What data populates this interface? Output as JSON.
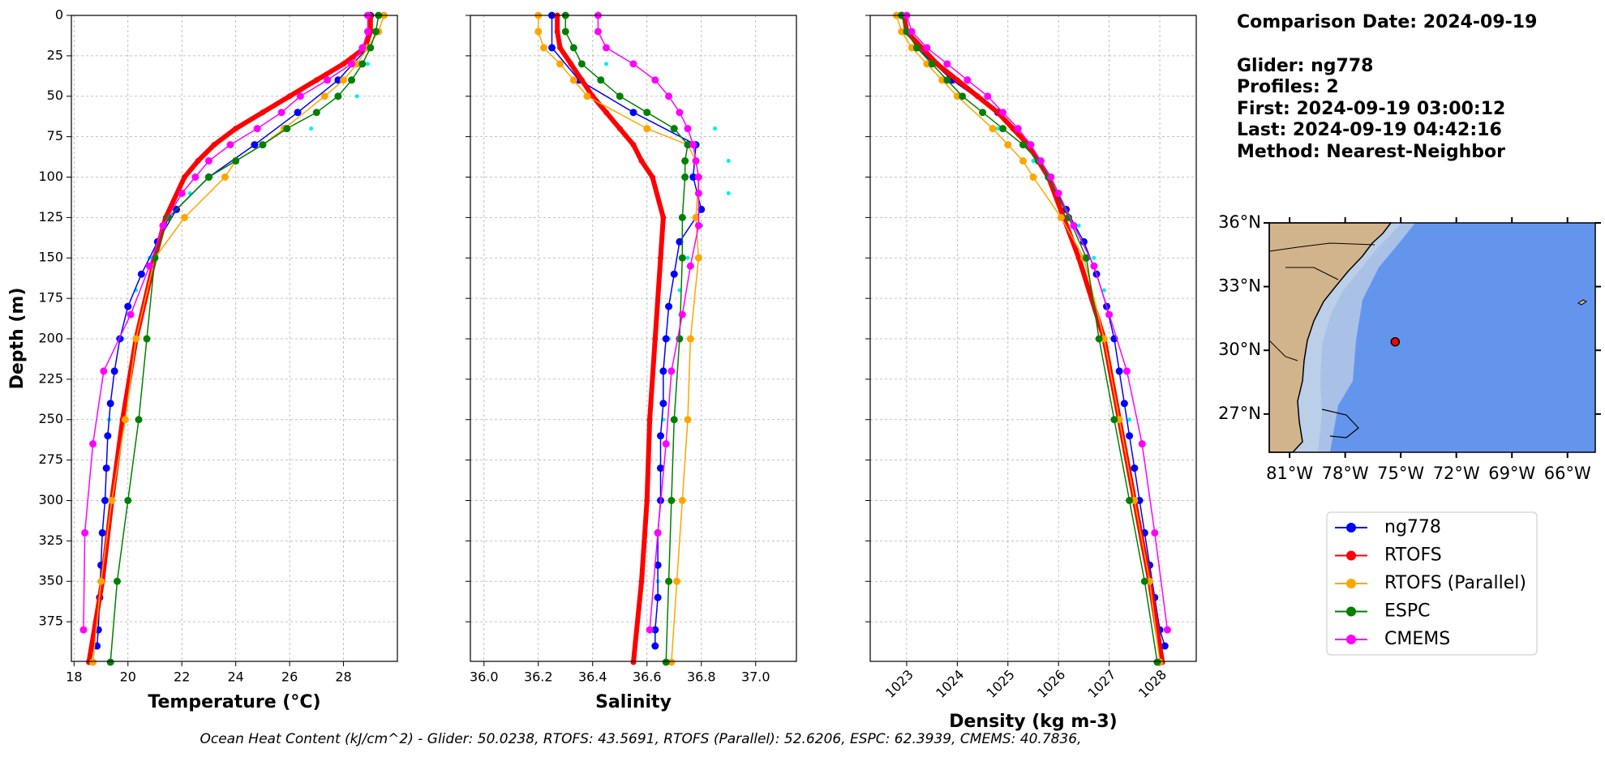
{
  "chart_data": [
    {
      "type": "line",
      "xlabel": "Temperature (°C)",
      "ylabel": "Depth (m)",
      "xlim": [
        17.9,
        30
      ],
      "xticks": [
        18,
        20,
        22,
        24,
        26,
        28
      ],
      "ylim": [
        399.5,
        0
      ],
      "yticks": [
        0,
        25,
        50,
        75,
        100,
        125,
        150,
        175,
        200,
        225,
        250,
        275,
        300,
        325,
        350,
        375
      ],
      "show_ytick_labels": true,
      "xtick_rotation": 0,
      "grid": true,
      "series": [
        {
          "color": "#00eeee",
          "linewidth": 0,
          "y": [
            30,
            50,
            70,
            90,
            110,
            130,
            150,
            170,
            200,
            250,
            300,
            350,
            390
          ],
          "values": [
            28.9,
            28.5,
            26.8,
            24.0,
            22.3,
            21.3,
            20.8,
            20.3,
            19.8,
            19.3,
            19.2,
            19.0,
            18.9
          ]
        },
        {
          "name": "ng778",
          "color": "#0000ff",
          "linewidth": 1.5,
          "y": [
            0,
            20,
            40,
            60,
            80,
            100,
            120,
            140,
            160,
            180,
            200,
            220,
            240,
            260,
            280,
            300,
            320,
            340,
            360,
            380,
            390
          ],
          "values": [
            29.0,
            28.9,
            27.8,
            26.3,
            24.7,
            23.0,
            21.8,
            21.1,
            20.5,
            20.0,
            19.7,
            19.5,
            19.35,
            19.25,
            19.2,
            19.15,
            19.05,
            19.0,
            18.95,
            18.9,
            18.85
          ]
        },
        {
          "name": "RTOFS",
          "color": "#ff0000",
          "linewidth": 6,
          "y": [
            0,
            10,
            20,
            30,
            40,
            50,
            60,
            70,
            80,
            90,
            100,
            125,
            150,
            200,
            250,
            300,
            350,
            400
          ],
          "values": [
            29.0,
            29.0,
            28.8,
            28.0,
            27.0,
            26.0,
            25.0,
            24.0,
            23.2,
            22.6,
            22.1,
            21.4,
            21.0,
            20.3,
            19.8,
            19.4,
            19.05,
            18.55
          ]
        },
        {
          "name": "RTOFS (Parallel)",
          "color": "#ffa500",
          "linewidth": 1.5,
          "y": [
            0,
            10,
            20,
            30,
            40,
            50,
            70,
            80,
            90,
            100,
            125,
            150,
            200,
            250,
            300,
            350,
            400
          ],
          "values": [
            29.5,
            29.3,
            28.9,
            28.5,
            28.0,
            27.3,
            25.8,
            25.0,
            24.0,
            23.6,
            22.1,
            21.0,
            20.3,
            19.9,
            19.4,
            19.0,
            18.7
          ]
        },
        {
          "name": "ESPC",
          "color": "#008000",
          "linewidth": 1.5,
          "y": [
            0,
            10,
            20,
            30,
            40,
            50,
            60,
            70,
            80,
            90,
            100,
            125,
            150,
            200,
            250,
            300,
            350,
            400
          ],
          "values": [
            29.3,
            29.2,
            29.0,
            28.7,
            28.3,
            27.8,
            27.0,
            25.9,
            25.0,
            24.0,
            23.0,
            21.5,
            21.0,
            20.7,
            20.4,
            20.0,
            19.6,
            19.35
          ]
        },
        {
          "name": "CMEMS",
          "color": "#ff00ff",
          "linewidth": 1.5,
          "y": [
            0,
            10,
            20,
            30,
            40,
            50,
            60,
            70,
            80,
            90,
            100,
            110,
            130,
            155,
            185,
            220,
            265,
            320,
            380
          ],
          "values": [
            28.9,
            28.9,
            28.7,
            28.3,
            27.4,
            26.4,
            25.7,
            24.8,
            23.8,
            23.0,
            22.5,
            22.0,
            21.3,
            20.8,
            20.1,
            19.1,
            18.7,
            18.4,
            18.35
          ]
        }
      ]
    },
    {
      "type": "line",
      "xlabel": "Salinity",
      "xlim": [
        35.95,
        37.15
      ],
      "xticks": [
        {
          "value": 36,
          "label": "36.0"
        },
        36.2,
        36.4,
        36.6,
        36.8,
        {
          "value": 37,
          "label": "37.0"
        }
      ],
      "ylim": [
        399.5,
        0
      ],
      "yticks": [
        0,
        25,
        50,
        75,
        100,
        125,
        150,
        175,
        200,
        225,
        250,
        275,
        300,
        325,
        350,
        375
      ],
      "show_ytick_labels": false,
      "xtick_rotation": 0,
      "grid": true,
      "series": [
        {
          "color": "#00eeee",
          "linewidth": 0,
          "y": [
            30,
            50,
            70,
            90,
            110,
            130,
            150,
            170,
            200,
            250,
            300,
            350,
            390
          ],
          "values": [
            36.45,
            36.5,
            36.85,
            36.9,
            36.9,
            36.8,
            36.75,
            36.72,
            36.68,
            36.66,
            36.65,
            36.64,
            36.63
          ]
        },
        {
          "color": "#0000ff",
          "linewidth": 1.5,
          "y": [
            0,
            20,
            40,
            60,
            80,
            100,
            120,
            140,
            160,
            180,
            200,
            220,
            240,
            260,
            280,
            300,
            320,
            340,
            360,
            380,
            390
          ],
          "values": [
            36.25,
            36.25,
            36.35,
            36.55,
            36.78,
            36.77,
            36.8,
            36.72,
            36.7,
            36.68,
            36.67,
            36.66,
            36.66,
            36.65,
            36.65,
            36.65,
            36.64,
            36.64,
            36.64,
            36.63,
            36.63
          ]
        },
        {
          "color": "#ff0000",
          "linewidth": 6,
          "y": [
            0,
            10,
            20,
            30,
            40,
            50,
            60,
            70,
            80,
            90,
            100,
            125,
            150,
            200,
            250,
            300,
            350,
            400
          ],
          "values": [
            36.27,
            36.27,
            36.28,
            36.32,
            36.36,
            36.4,
            36.45,
            36.5,
            36.55,
            36.58,
            36.62,
            36.66,
            36.65,
            36.63,
            36.61,
            36.6,
            36.58,
            36.55
          ]
        },
        {
          "color": "#ffa500",
          "linewidth": 1.5,
          "y": [
            0,
            10,
            20,
            30,
            40,
            50,
            70,
            80,
            90,
            100,
            125,
            150,
            200,
            250,
            300,
            350,
            400
          ],
          "values": [
            36.2,
            36.2,
            36.22,
            36.28,
            36.33,
            36.38,
            36.6,
            36.75,
            36.78,
            36.79,
            36.78,
            36.79,
            36.76,
            36.75,
            36.73,
            36.71,
            36.69
          ]
        },
        {
          "color": "#008000",
          "linewidth": 1.5,
          "y": [
            0,
            10,
            20,
            30,
            40,
            50,
            60,
            70,
            80,
            90,
            100,
            125,
            150,
            200,
            250,
            300,
            350,
            400
          ],
          "values": [
            36.3,
            36.3,
            36.33,
            36.36,
            36.43,
            36.5,
            36.6,
            36.7,
            36.75,
            36.74,
            36.74,
            36.73,
            36.73,
            36.72,
            36.7,
            36.69,
            36.68,
            36.67
          ]
        },
        {
          "color": "#ff00ff",
          "linewidth": 1.5,
          "y": [
            0,
            10,
            20,
            30,
            40,
            50,
            60,
            70,
            80,
            90,
            100,
            110,
            130,
            155,
            185,
            220,
            265,
            320,
            380
          ],
          "values": [
            36.42,
            36.42,
            36.45,
            36.55,
            36.63,
            36.68,
            36.72,
            36.75,
            36.77,
            36.78,
            36.79,
            36.79,
            36.79,
            36.76,
            36.73,
            36.69,
            36.67,
            36.64,
            36.61
          ]
        }
      ]
    },
    {
      "type": "line",
      "xlabel": "Density (kg m-3)",
      "xlim": [
        1022.28,
        1028.72
      ],
      "xticks": [
        1023,
        1024,
        1025,
        1026,
        1027,
        1028
      ],
      "ylim": [
        399.5,
        0
      ],
      "yticks": [
        0,
        25,
        50,
        75,
        100,
        125,
        150,
        175,
        200,
        225,
        250,
        275,
        300,
        325,
        350,
        375
      ],
      "show_ytick_labels": false,
      "xtick_rotation": 45,
      "grid": true,
      "series": [
        {
          "color": "#00eeee",
          "linewidth": 0,
          "y": [
            30,
            50,
            70,
            90,
            110,
            130,
            150,
            170,
            200,
            250,
            300,
            350,
            390
          ],
          "values": [
            1023.5,
            1024.0,
            1024.8,
            1025.5,
            1026.0,
            1026.4,
            1026.7,
            1026.9,
            1027.1,
            1027.4,
            1027.6,
            1027.8,
            1028.05
          ]
        },
        {
          "color": "#0000ff",
          "linewidth": 1.5,
          "y": [
            0,
            20,
            40,
            60,
            80,
            100,
            120,
            140,
            160,
            180,
            200,
            220,
            240,
            260,
            280,
            300,
            320,
            340,
            360,
            380,
            390
          ],
          "values": [
            1022.9,
            1023.2,
            1023.9,
            1024.8,
            1025.4,
            1025.8,
            1026.15,
            1026.5,
            1026.75,
            1026.95,
            1027.1,
            1027.2,
            1027.3,
            1027.4,
            1027.5,
            1027.6,
            1027.7,
            1027.8,
            1027.9,
            1028.0,
            1028.1
          ]
        },
        {
          "color": "#ff0000",
          "linewidth": 6,
          "y": [
            0,
            10,
            20,
            30,
            40,
            50,
            60,
            70,
            80,
            90,
            100,
            125,
            150,
            200,
            250,
            300,
            350,
            400
          ],
          "values": [
            1022.95,
            1023.0,
            1023.3,
            1023.6,
            1024.0,
            1024.4,
            1024.8,
            1025.1,
            1025.4,
            1025.6,
            1025.8,
            1026.1,
            1026.4,
            1026.9,
            1027.2,
            1027.5,
            1027.8,
            1028.05
          ]
        },
        {
          "color": "#ffa500",
          "linewidth": 1.5,
          "y": [
            0,
            10,
            20,
            30,
            40,
            50,
            70,
            80,
            90,
            100,
            125,
            150,
            200,
            250,
            300,
            350,
            400
          ],
          "values": [
            1022.8,
            1022.9,
            1023.1,
            1023.4,
            1023.7,
            1024.0,
            1024.7,
            1025.0,
            1025.3,
            1025.5,
            1026.05,
            1026.5,
            1026.9,
            1027.2,
            1027.5,
            1027.8,
            1028.0
          ]
        },
        {
          "color": "#008000",
          "linewidth": 1.5,
          "y": [
            0,
            10,
            20,
            30,
            40,
            50,
            60,
            70,
            80,
            90,
            100,
            125,
            150,
            200,
            250,
            300,
            350,
            400
          ],
          "values": [
            1022.9,
            1023.0,
            1023.2,
            1023.5,
            1023.8,
            1024.1,
            1024.5,
            1024.9,
            1025.3,
            1025.6,
            1025.8,
            1026.2,
            1026.55,
            1026.8,
            1027.1,
            1027.4,
            1027.7,
            1027.95
          ]
        },
        {
          "color": "#ff00ff",
          "linewidth": 1.5,
          "y": [
            0,
            10,
            20,
            30,
            40,
            50,
            60,
            70,
            80,
            90,
            100,
            110,
            130,
            155,
            185,
            220,
            265,
            320,
            380
          ],
          "values": [
            1023.0,
            1023.1,
            1023.4,
            1023.8,
            1024.2,
            1024.6,
            1024.9,
            1025.2,
            1025.45,
            1025.65,
            1025.85,
            1026.0,
            1026.3,
            1026.7,
            1027.0,
            1027.35,
            1027.65,
            1027.9,
            1028.15
          ]
        }
      ]
    }
  ],
  "info": {
    "lines": [
      "Comparison Date: 2024-09-19",
      "Glider: ng778",
      "Profiles: 2",
      "First: 2024-09-19 03:00:12",
      "Last: 2024-09-19 04:42:16",
      "Method: Nearest-Neighbor"
    ]
  },
  "map": {
    "xlim": [
      -82.1,
      -64.5
    ],
    "ylim": [
      25.2,
      36.0
    ],
    "xticks": [
      {
        "value": -81,
        "label": "81°W"
      },
      {
        "value": -78,
        "label": "78°W"
      },
      {
        "value": -75,
        "label": "75°W"
      },
      {
        "value": -72,
        "label": "72°W"
      },
      {
        "value": -69,
        "label": "69°W"
      },
      {
        "value": -66,
        "label": "66°W"
      }
    ],
    "yticks": [
      {
        "value": 27,
        "label": "27°N"
      },
      {
        "value": 30,
        "label": "30°N"
      },
      {
        "value": 33,
        "label": "33°N"
      },
      {
        "value": 36,
        "label": "36°N"
      }
    ],
    "glider_position": {
      "lon": -75.3,
      "lat": 30.4,
      "color": "#ff0000"
    }
  },
  "footer": "Ocean Heat Content (kJ/cm^2) - Glider: 50.0238,  RTOFS: 43.5691,  RTOFS (Parallel): 52.6206,  ESPC: 62.3939,  CMEMS: 40.7836,"
}
